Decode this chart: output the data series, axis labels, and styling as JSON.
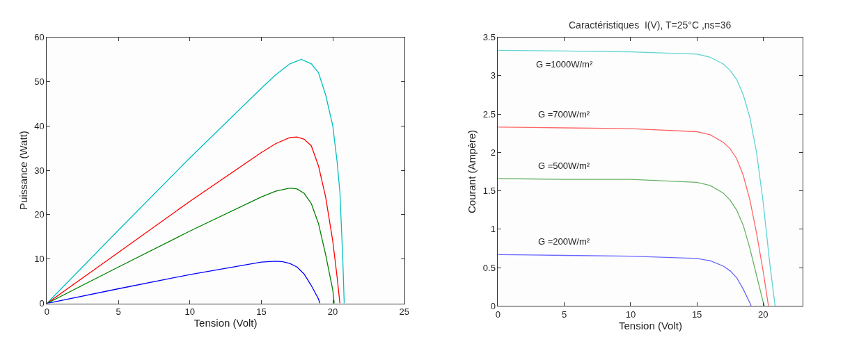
{
  "chart_data": [
    {
      "type": "line",
      "xlabel": "Tension (Volt)",
      "ylabel": "Puissance (Watt)",
      "xlim": [
        0,
        25
      ],
      "ylim": [
        0,
        60
      ],
      "xticks": [
        0,
        5,
        10,
        15,
        20,
        25
      ],
      "yticks": [
        0,
        10,
        20,
        30,
        40,
        50,
        60
      ],
      "marker": "none",
      "line_style": "solid",
      "series": [
        {
          "color": "#00bfbf",
          "x": [
            0,
            5,
            10,
            15,
            16,
            17,
            17.8,
            18.5,
            19,
            19.5,
            20,
            20.3,
            20.5,
            20.7,
            20.8
          ],
          "values": [
            0,
            16.5,
            32.8,
            48.5,
            51.5,
            54,
            55,
            54,
            52,
            47,
            40,
            32,
            25,
            10,
            0
          ]
        },
        {
          "color": "#ff0000",
          "x": [
            0,
            5,
            10,
            15,
            16,
            17,
            17.5,
            18,
            18.5,
            19,
            19.5,
            20,
            20.3,
            20.5
          ],
          "values": [
            0,
            11.5,
            23,
            34,
            36,
            37.4,
            37.5,
            37,
            35.5,
            31,
            24,
            14,
            6,
            0
          ]
        },
        {
          "color": "#008000",
          "x": [
            0,
            5,
            10,
            15,
            16,
            17,
            17.5,
            18,
            18.5,
            19,
            19.5,
            20,
            20.1
          ],
          "values": [
            0,
            8.2,
            16.3,
            24,
            25.3,
            26,
            25.8,
            24.8,
            22.5,
            18,
            11,
            3,
            0
          ]
        },
        {
          "color": "#0000ff",
          "x": [
            0,
            5,
            10,
            15,
            16,
            16.5,
            17,
            17.5,
            18,
            18.5,
            19,
            19.1
          ],
          "values": [
            0,
            3.3,
            6.5,
            9.3,
            9.5,
            9.4,
            9,
            8.2,
            6.6,
            4,
            1,
            0
          ]
        }
      ]
    },
    {
      "type": "line",
      "title": "Caractéristiques  I(V), T=25°C ,ns=36",
      "xlabel": "Tension (Volt)",
      "ylabel": "Courant (Ampère)",
      "xlim": [
        0,
        23
      ],
      "ylim": [
        0,
        3.5
      ],
      "xticks": [
        0,
        5,
        10,
        15,
        20
      ],
      "yticks": [
        0,
        0.5,
        1,
        1.5,
        2,
        2.5,
        3,
        3.5
      ],
      "marker": "none",
      "line_style": "solid",
      "series": [
        {
          "name": "G =1000W/m²",
          "color": "#5fd3d3",
          "x": [
            0,
            5,
            10,
            15,
            16,
            17,
            17.5,
            18,
            18.5,
            19,
            19.5,
            20,
            20.5,
            20.9
          ],
          "values": [
            3.33,
            3.32,
            3.31,
            3.28,
            3.24,
            3.15,
            3.07,
            2.95,
            2.75,
            2.45,
            2.0,
            1.35,
            0.55,
            0
          ]
        },
        {
          "name": "G =700W/m²",
          "color": "#ff6666",
          "x": [
            0,
            5,
            10,
            15,
            16,
            17,
            17.5,
            18,
            18.5,
            19,
            19.5,
            20,
            20.4
          ],
          "values": [
            2.33,
            2.32,
            2.31,
            2.27,
            2.23,
            2.13,
            2.05,
            1.92,
            1.7,
            1.38,
            0.95,
            0.45,
            0
          ]
        },
        {
          "name": "G =500W/m²",
          "color": "#66b266",
          "x": [
            0,
            5,
            10,
            15,
            16,
            17,
            17.5,
            18,
            18.5,
            19,
            19.5,
            20,
            20.1
          ],
          "values": [
            1.66,
            1.65,
            1.65,
            1.61,
            1.57,
            1.47,
            1.38,
            1.25,
            1.05,
            0.75,
            0.4,
            0.05,
            0
          ]
        },
        {
          "name": "G =200W/m²",
          "color": "#6666ff",
          "x": [
            0,
            5,
            10,
            15,
            16,
            17,
            17.5,
            18,
            18.5,
            19,
            19.1
          ],
          "values": [
            0.67,
            0.66,
            0.65,
            0.62,
            0.59,
            0.52,
            0.46,
            0.37,
            0.22,
            0.04,
            0
          ]
        }
      ]
    }
  ]
}
